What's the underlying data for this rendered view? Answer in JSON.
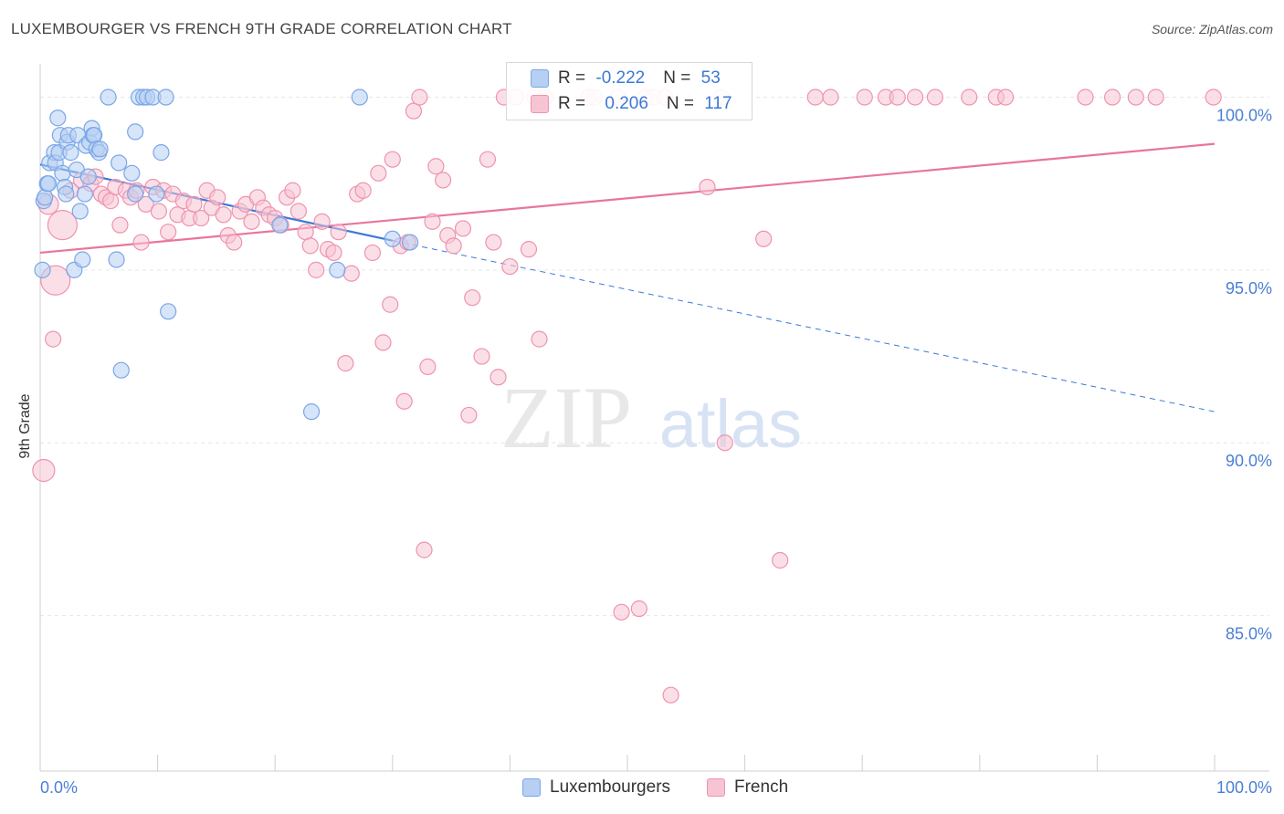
{
  "title": "LUXEMBOURGER VS FRENCH 9TH GRADE CORRELATION CHART",
  "source": "Source: ZipAtlas.com",
  "watermark": {
    "zip": "ZIP",
    "atlas": "atlas"
  },
  "legend": {
    "rows": [
      {
        "r_label": "R = ",
        "r_value": "-0.222",
        "n_label": "N = ",
        "n_value": "53",
        "color": "#7aa6e8",
        "fill": "#b7cff3"
      },
      {
        "r_label": "R = ",
        "r_value": "0.206",
        "n_label": "N = ",
        "n_value": "117",
        "color": "#ee93b0",
        "fill": "#f7c4d4"
      }
    ]
  },
  "bottom_legend": [
    {
      "label": "Luxembourgers",
      "color": "#7aa6e8",
      "fill": "#b7cff3"
    },
    {
      "label": "French",
      "color": "#ee93b0",
      "fill": "#f7c4d4"
    }
  ],
  "chart_data": {
    "type": "scatter",
    "xlabel": "",
    "ylabel": "9th Grade",
    "xlim": [
      0,
      100
    ],
    "ylim": [
      80.5,
      100.7
    ],
    "x_tick_labels": [
      "0.0%",
      "100.0%"
    ],
    "y_ticks": [
      85,
      90,
      95,
      100
    ],
    "y_tick_labels": [
      "85.0%",
      "90.0%",
      "95.0%",
      "100.0%"
    ],
    "grid": true,
    "series": [
      {
        "name": "Luxembourgers",
        "color": "#7aa6e8",
        "fill": "#b7cff3",
        "points": [
          [
            0.2,
            95.0
          ],
          [
            0.3,
            97.0
          ],
          [
            0.4,
            97.1
          ],
          [
            0.6,
            97.5
          ],
          [
            0.7,
            97.5
          ],
          [
            0.8,
            98.1
          ],
          [
            1.2,
            98.4
          ],
          [
            1.3,
            98.1
          ],
          [
            1.5,
            99.4
          ],
          [
            1.6,
            98.4
          ],
          [
            1.7,
            98.9
          ],
          [
            1.9,
            97.8
          ],
          [
            2.1,
            97.4
          ],
          [
            2.2,
            97.2
          ],
          [
            2.3,
            98.7
          ],
          [
            2.4,
            98.9
          ],
          [
            2.6,
            98.4
          ],
          [
            2.9,
            95.0
          ],
          [
            3.1,
            97.9
          ],
          [
            3.2,
            98.9
          ],
          [
            3.4,
            96.7
          ],
          [
            3.6,
            95.3
          ],
          [
            3.8,
            97.2
          ],
          [
            3.9,
            98.6
          ],
          [
            4.1,
            97.7
          ],
          [
            4.2,
            98.7
          ],
          [
            4.4,
            99.1
          ],
          [
            4.5,
            98.9
          ],
          [
            4.6,
            98.9
          ],
          [
            4.8,
            98.5
          ],
          [
            5.0,
            98.4
          ],
          [
            5.1,
            98.5
          ],
          [
            5.8,
            100.0
          ],
          [
            6.5,
            95.3
          ],
          [
            6.7,
            98.1
          ],
          [
            6.9,
            92.1
          ],
          [
            7.8,
            97.8
          ],
          [
            8.1,
            99.0
          ],
          [
            8.1,
            97.2
          ],
          [
            8.4,
            100.0
          ],
          [
            8.8,
            100.0
          ],
          [
            9.1,
            100.0
          ],
          [
            9.6,
            100.0
          ],
          [
            9.9,
            97.2
          ],
          [
            10.3,
            98.4
          ],
          [
            10.7,
            100.0
          ],
          [
            10.9,
            93.8
          ],
          [
            20.4,
            96.3
          ],
          [
            23.1,
            90.9
          ],
          [
            25.3,
            95.0
          ],
          [
            27.2,
            100.0
          ],
          [
            30.0,
            95.9
          ],
          [
            31.5,
            95.8
          ]
        ],
        "trend": {
          "x": [
            0,
            30
          ],
          "y": [
            98.05,
            95.85
          ]
        },
        "trend_extension": {
          "x": [
            30,
            100
          ],
          "y": [
            95.85,
            90.9
          ]
        }
      },
      {
        "name": "French",
        "color": "#ee93b0",
        "fill": "#f7c4d4",
        "points": [
          [
            0.3,
            89.2
          ],
          [
            0.7,
            96.9
          ],
          [
            1.1,
            93.0
          ],
          [
            1.3,
            94.7
          ],
          [
            1.9,
            96.3
          ],
          [
            2.6,
            97.3
          ],
          [
            3.5,
            97.6
          ],
          [
            4.3,
            97.5
          ],
          [
            4.7,
            97.7
          ],
          [
            5.2,
            97.2
          ],
          [
            5.6,
            97.1
          ],
          [
            6.0,
            97.0
          ],
          [
            6.4,
            97.4
          ],
          [
            6.8,
            96.3
          ],
          [
            7.3,
            97.3
          ],
          [
            7.7,
            97.1
          ],
          [
            8.2,
            97.3
          ],
          [
            8.6,
            95.8
          ],
          [
            9.0,
            96.9
          ],
          [
            9.6,
            97.4
          ],
          [
            10.1,
            96.7
          ],
          [
            10.5,
            97.3
          ],
          [
            10.9,
            96.1
          ],
          [
            11.3,
            97.2
          ],
          [
            11.7,
            96.6
          ],
          [
            12.2,
            97.0
          ],
          [
            12.7,
            96.5
          ],
          [
            13.1,
            96.9
          ],
          [
            13.7,
            96.5
          ],
          [
            14.2,
            97.3
          ],
          [
            14.6,
            96.8
          ],
          [
            15.1,
            97.1
          ],
          [
            15.6,
            96.6
          ],
          [
            16.0,
            96.0
          ],
          [
            16.5,
            95.8
          ],
          [
            17.0,
            96.7
          ],
          [
            17.5,
            96.9
          ],
          [
            18.0,
            96.4
          ],
          [
            18.5,
            97.1
          ],
          [
            19.0,
            96.8
          ],
          [
            19.5,
            96.6
          ],
          [
            20.0,
            96.5
          ],
          [
            20.5,
            96.3
          ],
          [
            21.0,
            97.1
          ],
          [
            21.5,
            97.3
          ],
          [
            22.0,
            96.7
          ],
          [
            22.6,
            96.1
          ],
          [
            23.0,
            95.7
          ],
          [
            23.5,
            95.0
          ],
          [
            24.0,
            96.4
          ],
          [
            24.5,
            95.6
          ],
          [
            25.0,
            95.5
          ],
          [
            25.4,
            96.1
          ],
          [
            26.0,
            92.3
          ],
          [
            26.5,
            94.9
          ],
          [
            27.0,
            97.2
          ],
          [
            27.5,
            97.3
          ],
          [
            28.3,
            95.5
          ],
          [
            28.8,
            97.8
          ],
          [
            29.2,
            92.9
          ],
          [
            29.8,
            94.0
          ],
          [
            30.7,
            95.7
          ],
          [
            31.0,
            91.2
          ],
          [
            31.3,
            95.8
          ],
          [
            31.8,
            99.6
          ],
          [
            32.3,
            100.0
          ],
          [
            32.7,
            86.9
          ],
          [
            33.0,
            92.2
          ],
          [
            33.4,
            96.4
          ],
          [
            33.7,
            98.0
          ],
          [
            34.3,
            97.6
          ],
          [
            34.7,
            96.0
          ],
          [
            35.2,
            95.7
          ],
          [
            36.0,
            96.2
          ],
          [
            36.5,
            90.8
          ],
          [
            36.8,
            94.2
          ],
          [
            37.6,
            92.5
          ],
          [
            38.1,
            98.2
          ],
          [
            38.6,
            95.8
          ],
          [
            39.0,
            91.9
          ],
          [
            39.5,
            100.0
          ],
          [
            40.0,
            95.1
          ],
          [
            40.5,
            100.0
          ],
          [
            41.6,
            95.6
          ],
          [
            42.1,
            100.0
          ],
          [
            42.5,
            93.0
          ],
          [
            43.0,
            100.0
          ],
          [
            46.7,
            100.0
          ],
          [
            47.2,
            100.0
          ],
          [
            49.2,
            100.0
          ],
          [
            49.5,
            85.1
          ],
          [
            51.0,
            85.2
          ],
          [
            51.5,
            100.0
          ],
          [
            52.2,
            100.0
          ],
          [
            53.7,
            82.7
          ],
          [
            56.8,
            97.4
          ],
          [
            58.0,
            100.0
          ],
          [
            61.6,
            95.9
          ],
          [
            63.0,
            86.6
          ],
          [
            66.0,
            100.0
          ],
          [
            67.3,
            100.0
          ],
          [
            70.2,
            100.0
          ],
          [
            72.0,
            100.0
          ],
          [
            73.0,
            100.0
          ],
          [
            74.5,
            100.0
          ],
          [
            76.2,
            100.0
          ],
          [
            79.1,
            100.0
          ],
          [
            81.4,
            100.0
          ],
          [
            82.2,
            100.0
          ],
          [
            89.0,
            100.0
          ],
          [
            91.3,
            100.0
          ],
          [
            93.3,
            100.0
          ],
          [
            95.0,
            100.0
          ],
          [
            99.9,
            100.0
          ],
          [
            53.2,
            100.0
          ],
          [
            58.3,
            90.0
          ],
          [
            30.0,
            98.2
          ]
        ],
        "trend": {
          "x": [
            0,
            100
          ],
          "y": [
            95.5,
            98.65
          ]
        }
      }
    ]
  }
}
